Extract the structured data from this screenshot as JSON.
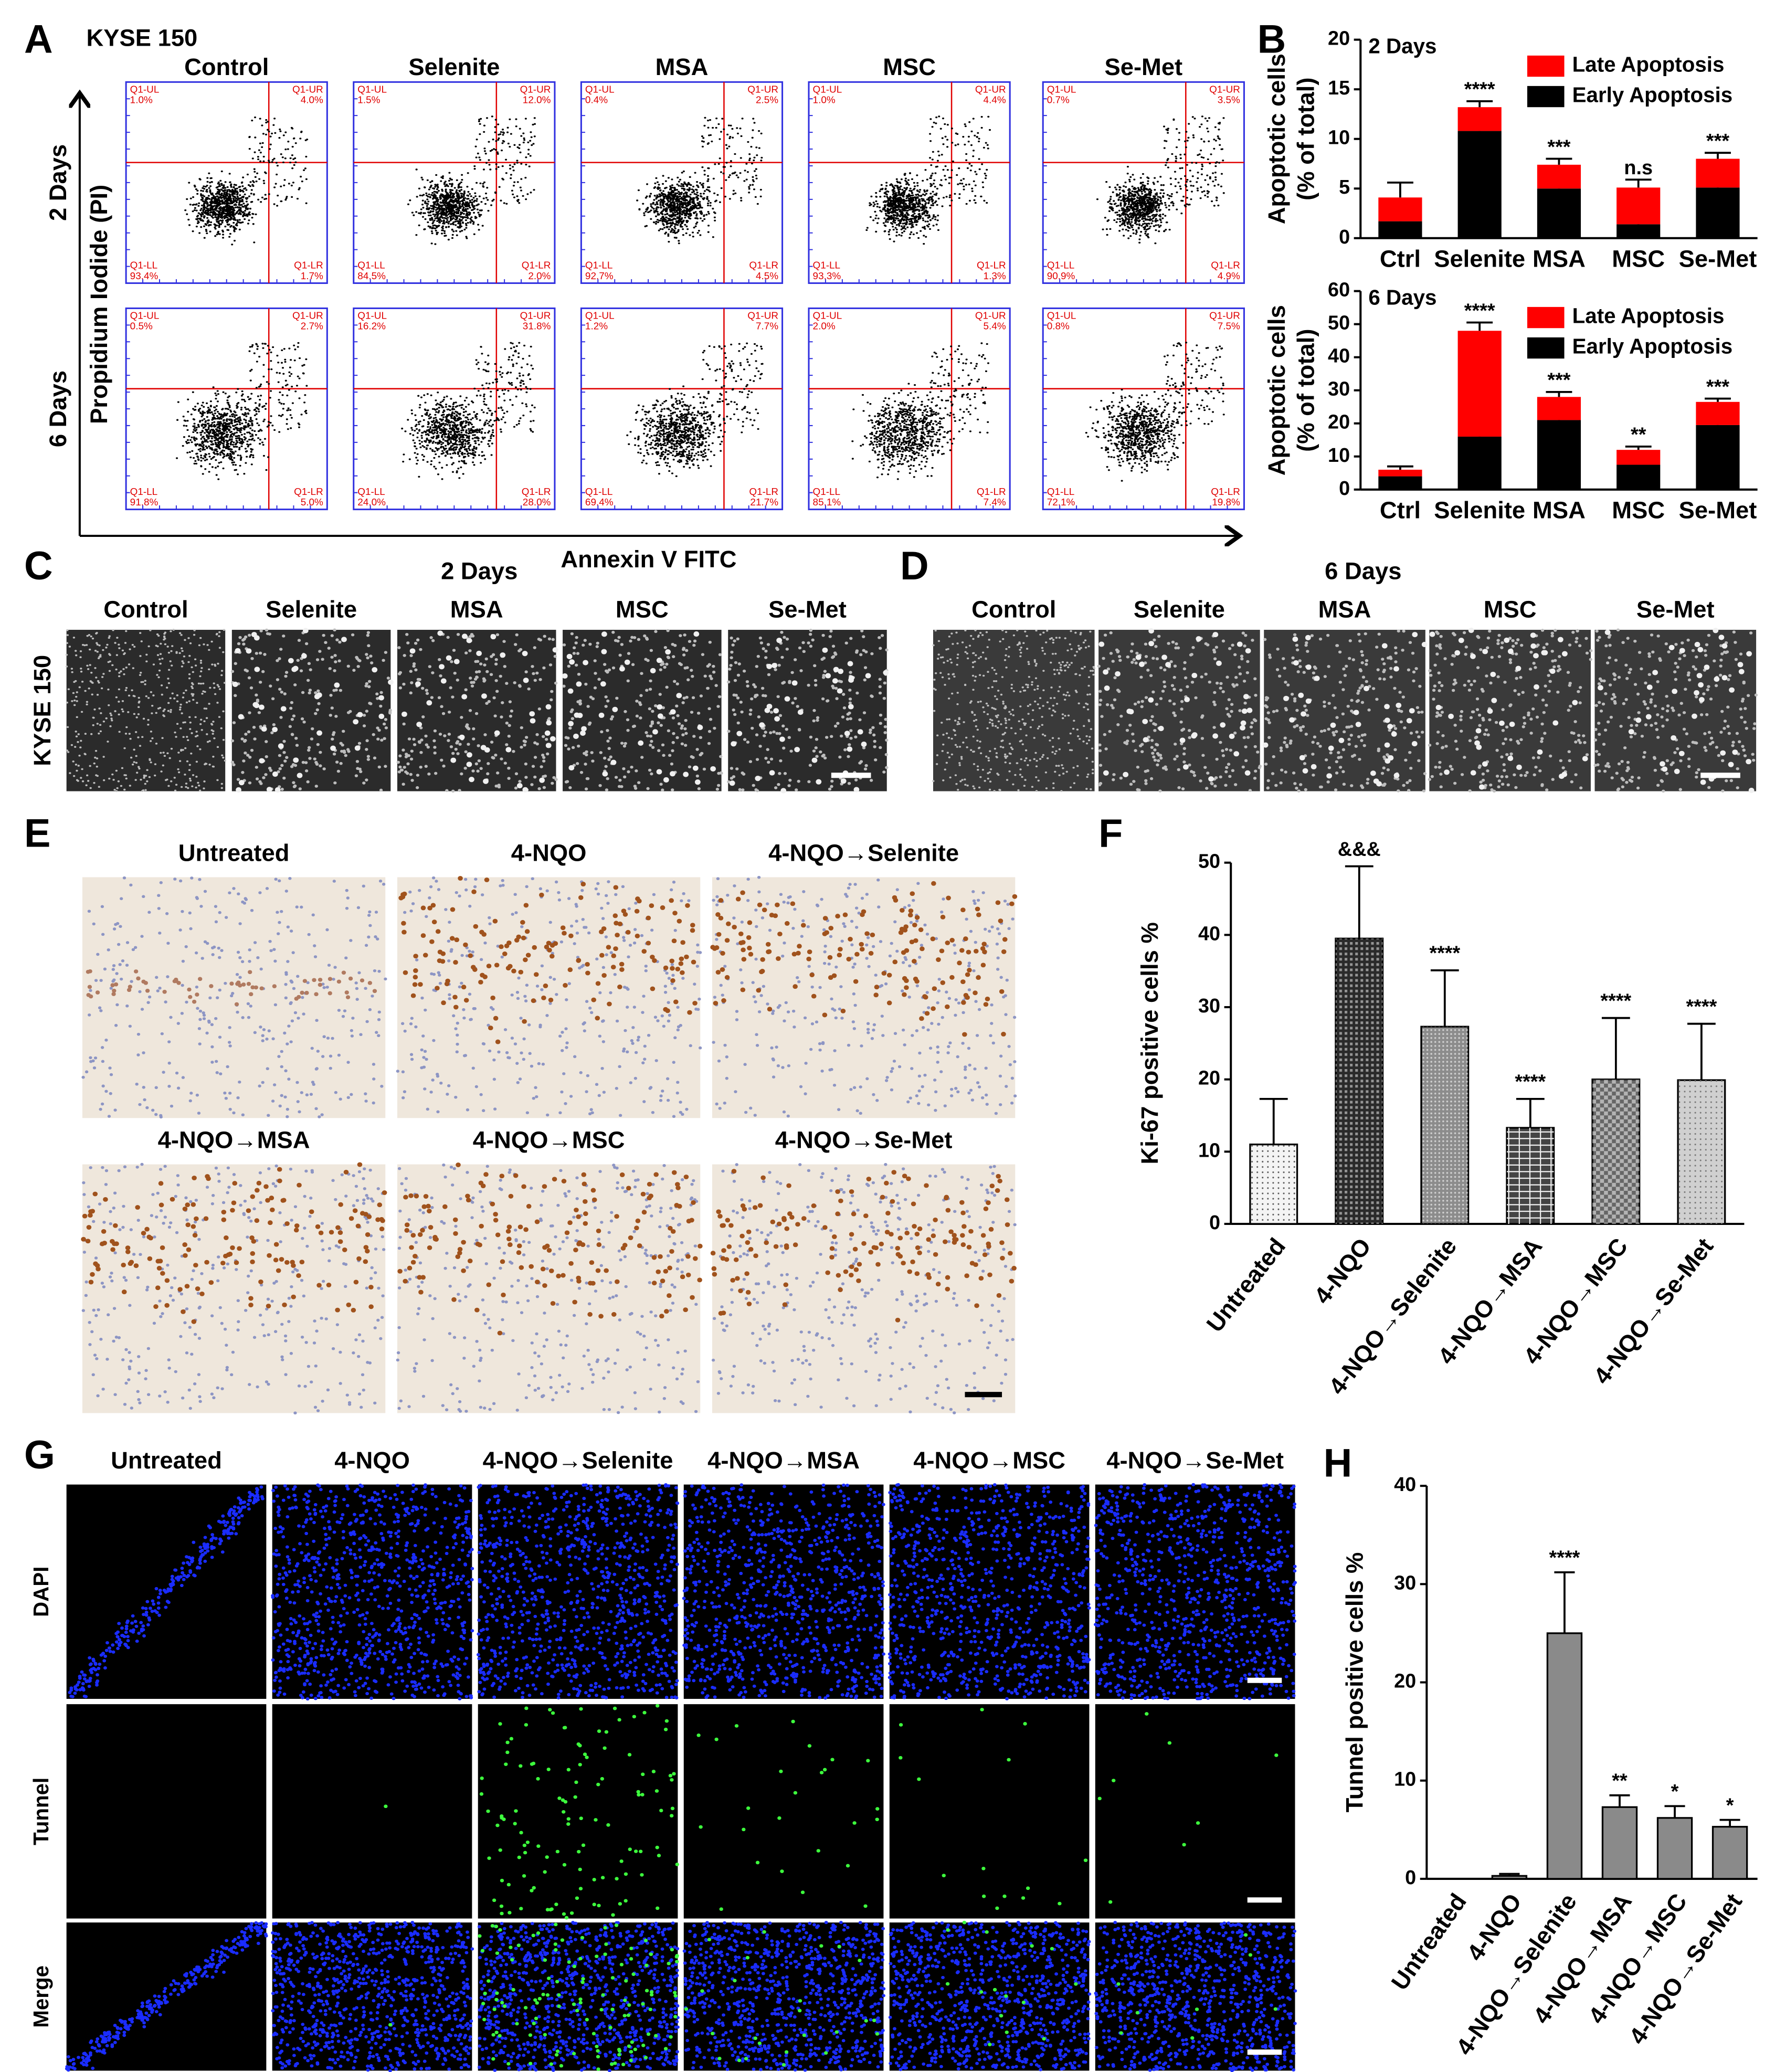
{
  "panel_labels": [
    "A",
    "B",
    "C",
    "D",
    "E",
    "F",
    "G",
    "H"
  ],
  "flow": {
    "cell_line": "KYSE 150",
    "treatments": [
      "Control",
      "Selenite",
      "MSA",
      "MSC",
      "Se-Met"
    ],
    "timepoints": [
      "2 Days",
      "6 Days"
    ],
    "y_label": "Propidium Iodide (PI)",
    "x_label": "Annexin V FITC",
    "quadrant_names": [
      "Q1-UL",
      "Q1-UR",
      "Q1-LL",
      "Q1-LR"
    ],
    "quadrants": [
      [
        [
          "1.0%",
          "4.0%",
          "93.4%",
          "1.7%"
        ],
        [
          "1.5%",
          "12.0%",
          "84.5%",
          "2.0%"
        ],
        [
          "0.4%",
          "2.5%",
          "92.7%",
          "4.5%"
        ],
        [
          "1.0%",
          "4.4%",
          "93.3%",
          "1.3%"
        ],
        [
          "0.7%",
          "3.5%",
          "90.9%",
          "4.9%"
        ]
      ],
      [
        [
          "0.5%",
          "2.7%",
          "91.8%",
          "5.0%"
        ],
        [
          "16.2%",
          "31.8%",
          "24.0%",
          "28.0%"
        ],
        [
          "1.2%",
          "7.7%",
          "69.4%",
          "21.7%"
        ],
        [
          "2.0%",
          "5.4%",
          "85.1%",
          "7.4%"
        ],
        [
          "0.8%",
          "7.5%",
          "72.1%",
          "19.8%"
        ]
      ]
    ]
  },
  "panel_c": {
    "cell_line": "KYSE 150",
    "title": "2 Days",
    "columns": [
      "Control",
      "Selenite",
      "MSA",
      "MSC",
      "Se-Met"
    ]
  },
  "panel_d": {
    "title": "6 Days",
    "columns": [
      "Control",
      "Selenite",
      "MSA",
      "MSC",
      "Se-Met"
    ]
  },
  "panel_e": {
    "titles": [
      "Untreated",
      "4-NQO",
      "4-NQO→Selenite",
      "4-NQO→MSA",
      "4-NQO→MSC",
      "4-NQO→Se-Met"
    ]
  },
  "panel_g": {
    "columns": [
      "Untreated",
      "4-NQO",
      "4-NQO→Selenite",
      "4-NQO→MSA",
      "4-NQO→MSC",
      "4-NQO→Se-Met"
    ],
    "rows": [
      "DAPI",
      "Tunnel",
      "Merge"
    ]
  },
  "chart_data": [
    {
      "type": "stacked_bar",
      "title": "2 Days",
      "ylabel": [
        "Apoptotic cells",
        "(% of total)"
      ],
      "categories": [
        "Ctrl",
        "Selenite",
        "MSA",
        "MSC",
        "Se-Met"
      ],
      "series": [
        {
          "name": "Early Apoptosis",
          "color": "#000000",
          "values": [
            1.7,
            10.8,
            5.0,
            1.4,
            5.1
          ],
          "errors": [
            0.3,
            0.8,
            0.6,
            0.6,
            0.4
          ]
        },
        {
          "name": "Late Apoptosis",
          "color": "#ff0000",
          "values": [
            2.4,
            2.4,
            2.4,
            3.7,
            2.9
          ],
          "errors": [
            1.5,
            0.6,
            0.6,
            0.8,
            0.6
          ]
        }
      ],
      "annotations": [
        null,
        "****",
        "***",
        "n.s",
        "***"
      ],
      "ylim": [
        0,
        20
      ],
      "yticks": [
        0,
        5,
        10,
        15,
        20
      ]
    },
    {
      "type": "stacked_bar",
      "title": "6 Days",
      "ylabel": [
        "Apoptotic cells",
        "(% of total)"
      ],
      "categories": [
        "Ctrl",
        "Selenite",
        "MSA",
        "MSC",
        "Se-Met"
      ],
      "series": [
        {
          "name": "Early Apoptosis",
          "color": "#000000",
          "values": [
            4,
            16,
            21,
            7.5,
            19.5
          ],
          "errors": [
            0.8,
            2,
            1.5,
            1,
            1.2
          ]
        },
        {
          "name": "Late Apoptosis",
          "color": "#ff0000",
          "values": [
            2,
            32,
            7,
            4.5,
            7
          ],
          "errors": [
            1,
            2.5,
            1.5,
            1,
            1
          ]
        }
      ],
      "annotations": [
        null,
        "****",
        "***",
        "**",
        "***"
      ],
      "ylim": [
        0,
        60
      ],
      "yticks": [
        0,
        10,
        20,
        30,
        40,
        50,
        60
      ]
    },
    {
      "type": "bar",
      "ylabel": "Ki-67 positive cells %",
      "categories": [
        "Untreated",
        "4-NQO",
        "4-NQO→Selenite",
        "4-NQO→MSA",
        "4-NQO→MSC",
        "4-NQO→Se-Met"
      ],
      "values": [
        11,
        39.5,
        27.3,
        13.3,
        20,
        19.9
      ],
      "errors": [
        6.3,
        10,
        7.8,
        4,
        8.5,
        7.8
      ],
      "colors": [
        "#f4f4f4",
        "#2a2a2a",
        "#8c8c8c",
        "#444444",
        "#666666",
        "#d0d0d0"
      ],
      "annotations": [
        null,
        "&&&",
        "****",
        "****",
        "****",
        "****"
      ],
      "ylim": [
        0,
        50
      ],
      "yticks": [
        0,
        10,
        20,
        30,
        40,
        50
      ]
    },
    {
      "type": "bar",
      "ylabel": "Tunnel positive cells %",
      "categories": [
        "Untreated",
        "4-NQO",
        "4-NQO→Selenite",
        "4-NQO→MSA",
        "4-NQO→MSC",
        "4-NQO→Se-Met"
      ],
      "values": [
        0,
        0.3,
        25,
        7.3,
        6.2,
        5.3
      ],
      "errors": [
        0,
        0.2,
        6.2,
        1.2,
        1.2,
        0.7
      ],
      "color": "#8a8a8a",
      "annotations": [
        null,
        null,
        "****",
        "**",
        "*",
        "*"
      ],
      "ylim": [
        0,
        40
      ],
      "yticks": [
        0,
        10,
        20,
        30,
        40
      ]
    }
  ]
}
